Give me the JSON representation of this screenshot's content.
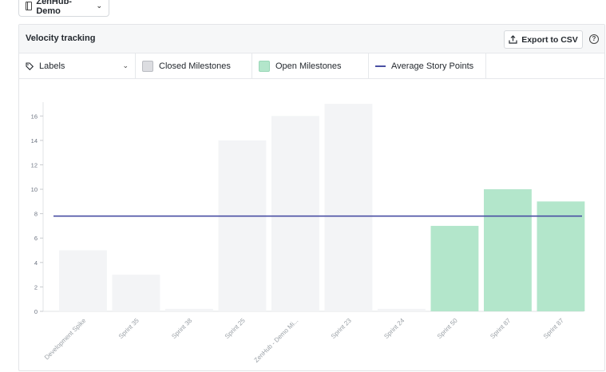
{
  "repo_selector": {
    "label": "ZenHub-Demo",
    "icon": "book-icon"
  },
  "panel": {
    "title": "Velocity tracking",
    "export_label": "Export to CSV",
    "help_glyph": "?"
  },
  "legend": {
    "labels_filter": "Labels",
    "closed": "Closed Milestones",
    "open": "Open Milestones",
    "average": "Average Story Points"
  },
  "colors": {
    "closed_bar": "#f3f4f6",
    "open_bar": "#b3e6cb",
    "average_line": "#4a4fa3"
  },
  "chart_data": {
    "type": "bar",
    "categories": [
      "Development Spike",
      "Sprint 35",
      "Sprint 38",
      "Sprint 25",
      "ZenHub - Demo Mi...",
      "Sprint 23",
      "Sprint 24",
      "Sprint 50",
      "Sprint 87",
      "Sprint 87"
    ],
    "values": [
      5,
      3,
      0.2,
      14,
      16,
      17,
      0.2,
      7,
      10,
      9
    ],
    "status": [
      "closed",
      "closed",
      "closed",
      "closed",
      "closed",
      "closed",
      "closed",
      "open",
      "open",
      "open"
    ],
    "average": 7.8,
    "ylim": [
      0,
      17
    ],
    "yticks": [
      0,
      2,
      4,
      6,
      8,
      10,
      12,
      14,
      16
    ],
    "legend_position": "top",
    "grid": false
  }
}
